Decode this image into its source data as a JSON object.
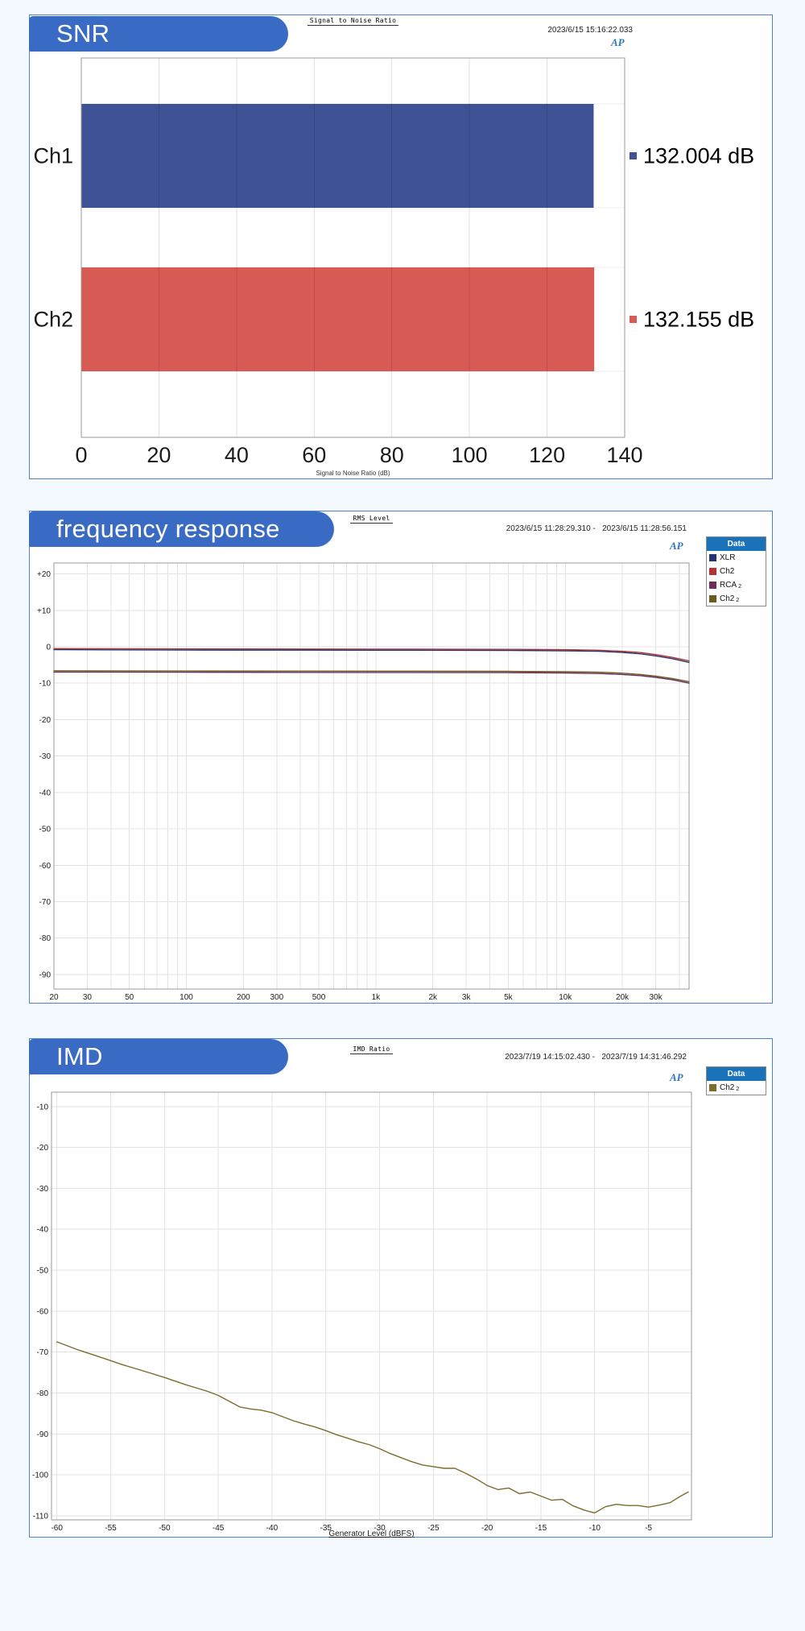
{
  "colors": {
    "banner_bg": "#3a6bc4",
    "panel_border": "#4d82cc",
    "page_bg": "#f4f9ff",
    "legend_header_bg": "#1a73b8"
  },
  "panels": [
    {
      "banner": "SNR",
      "title": "Signal to Noise Ratio",
      "timestamp": "2023/6/15 15:16:22.033",
      "logo": "AP"
    },
    {
      "banner": "frequency response",
      "title": "RMS Level",
      "timestamp": "2023/6/15 11:28:29.310 -   2023/6/15 11:28:56.151",
      "logo": "AP",
      "legend": {
        "header": "Data",
        "items": [
          {
            "label": "XLR",
            "sub": "",
            "color": "#22356e"
          },
          {
            "label": "Ch2",
            "sub": "",
            "color": "#b13434"
          },
          {
            "label": "RCA",
            "sub": "2",
            "color": "#6d2d5d"
          },
          {
            "label": "Ch2",
            "sub": "2",
            "color": "#6b5c1e"
          }
        ]
      }
    },
    {
      "banner": "IMD",
      "title": "IMD Ratio",
      "timestamp": "2023/7/19 14:15:02.430 -   2023/7/19 14:31:46.292",
      "logo": "AP",
      "legend": {
        "header": "Data",
        "items": [
          {
            "label": "Ch2",
            "sub": "2",
            "color": "#7d6c2a"
          }
        ]
      }
    }
  ],
  "chart_data": [
    {
      "type": "bar",
      "orientation": "horizontal",
      "title": "Signal to Noise Ratio",
      "categories": [
        "Ch1",
        "Ch2"
      ],
      "values": [
        132.004,
        132.155
      ],
      "value_labels": [
        "132.004 dB",
        "132.155 dB"
      ],
      "bar_colors": [
        "#3e5295",
        "#d85a55"
      ],
      "xlim": [
        0,
        140
      ],
      "xticks": [
        0,
        20,
        40,
        60,
        80,
        100,
        120,
        140
      ],
      "xlabel": "Signal to Noise Ratio (dB)",
      "grid": true
    },
    {
      "type": "line",
      "title": "RMS Level",
      "x_scale": "log",
      "xlim": [
        20,
        45000
      ],
      "xticks": [
        20,
        30,
        50,
        100,
        200,
        300,
        500,
        1000,
        2000,
        3000,
        5000,
        10000,
        20000,
        30000
      ],
      "xtick_labels": [
        "20",
        "30",
        "50",
        "100",
        "200",
        "300",
        "500",
        "1k",
        "2k",
        "3k",
        "5k",
        "10k",
        "20k",
        "30k"
      ],
      "ylim": [
        -94,
        23
      ],
      "yticks": [
        20,
        10,
        0,
        -10,
        -20,
        -30,
        -40,
        -50,
        -60,
        -70,
        -80,
        -90
      ],
      "ytick_labels": [
        "+20",
        "+10",
        "0",
        "-10",
        "-20",
        "-30",
        "-40",
        "-50",
        "-60",
        "-70",
        "-80",
        "-90"
      ],
      "grid": true,
      "legend_position": "top-right",
      "series": [
        {
          "name": "XLR",
          "color": "#22356e",
          "points": [
            [
              20,
              -0.8
            ],
            [
              100,
              -0.9
            ],
            [
              1000,
              -0.95
            ],
            [
              5000,
              -1.0
            ],
            [
              10000,
              -1.1
            ],
            [
              15000,
              -1.25
            ],
            [
              20000,
              -1.55
            ],
            [
              25000,
              -1.95
            ],
            [
              30000,
              -2.5
            ],
            [
              37000,
              -3.3
            ],
            [
              45000,
              -4.3
            ]
          ]
        },
        {
          "name": "Ch2",
          "color": "#b13434",
          "points": [
            [
              20,
              -0.5
            ],
            [
              100,
              -0.6
            ],
            [
              1000,
              -0.65
            ],
            [
              5000,
              -0.7
            ],
            [
              10000,
              -0.8
            ],
            [
              15000,
              -0.95
            ],
            [
              20000,
              -1.25
            ],
            [
              25000,
              -1.6
            ],
            [
              30000,
              -2.15
            ],
            [
              37000,
              -2.95
            ],
            [
              45000,
              -3.9
            ]
          ]
        },
        {
          "name": "RCA 2",
          "color": "#6d2d5d",
          "points": [
            [
              20,
              -6.95
            ],
            [
              100,
              -7.0
            ],
            [
              1000,
              -7.05
            ],
            [
              5000,
              -7.1
            ],
            [
              10000,
              -7.2
            ],
            [
              15000,
              -7.35
            ],
            [
              20000,
              -7.6
            ],
            [
              25000,
              -7.95
            ],
            [
              30000,
              -8.4
            ],
            [
              37000,
              -9.1
            ],
            [
              45000,
              -10.0
            ]
          ]
        },
        {
          "name": "Ch2 2",
          "color": "#6b5c1e",
          "points": [
            [
              20,
              -6.6
            ],
            [
              100,
              -6.65
            ],
            [
              1000,
              -6.7
            ],
            [
              5000,
              -6.75
            ],
            [
              10000,
              -6.85
            ],
            [
              15000,
              -7.0
            ],
            [
              20000,
              -7.25
            ],
            [
              25000,
              -7.6
            ],
            [
              30000,
              -8.05
            ],
            [
              37000,
              -8.75
            ],
            [
              45000,
              -9.6
            ]
          ]
        }
      ]
    },
    {
      "type": "line",
      "title": "IMD Ratio",
      "x_scale": "linear",
      "xlim": [
        -60.5,
        -1
      ],
      "xticks": [
        -60,
        -55,
        -50,
        -45,
        -40,
        -35,
        -30,
        -25,
        -20,
        -15,
        -10,
        -5
      ],
      "ylim": [
        -111,
        -6.5
      ],
      "yticks": [
        -10,
        -20,
        -30,
        -40,
        -50,
        -60,
        -70,
        -80,
        -90,
        -100,
        -110
      ],
      "xlabel": "Generator Level (dBFS)",
      "grid": true,
      "legend_position": "top-right",
      "series": [
        {
          "name": "Ch2 2",
          "color": "#7d6c2a",
          "points": [
            [
              -60,
              -67.5
            ],
            [
              -58,
              -69.5
            ],
            [
              -56,
              -71.2
            ],
            [
              -54,
              -73
            ],
            [
              -52,
              -74.6
            ],
            [
              -50,
              -76.2
            ],
            [
              -48,
              -78
            ],
            [
              -46,
              -79.6
            ],
            [
              -45,
              -80.6
            ],
            [
              -44,
              -82
            ],
            [
              -43,
              -83.4
            ],
            [
              -42,
              -83.9
            ],
            [
              -41,
              -84.2
            ],
            [
              -40,
              -84.8
            ],
            [
              -39,
              -85.8
            ],
            [
              -38,
              -86.8
            ],
            [
              -37,
              -87.6
            ],
            [
              -36,
              -88.3
            ],
            [
              -35,
              -89.2
            ],
            [
              -34,
              -90.2
            ],
            [
              -33,
              -91
            ],
            [
              -32,
              -91.9
            ],
            [
              -31,
              -92.6
            ],
            [
              -30,
              -93.6
            ],
            [
              -29,
              -94.8
            ],
            [
              -28,
              -95.8
            ],
            [
              -27,
              -96.8
            ],
            [
              -26,
              -97.6
            ],
            [
              -25,
              -98
            ],
            [
              -24,
              -98.4
            ],
            [
              -23,
              -98.4
            ],
            [
              -22,
              -99.6
            ],
            [
              -21,
              -101
            ],
            [
              -20,
              -102.6
            ],
            [
              -19,
              -103.6
            ],
            [
              -18,
              -103.2
            ],
            [
              -17,
              -104.6
            ],
            [
              -16,
              -104.2
            ],
            [
              -15,
              -105.2
            ],
            [
              -14,
              -106.2
            ],
            [
              -13,
              -106
            ],
            [
              -12,
              -107.6
            ],
            [
              -11,
              -108.6
            ],
            [
              -10,
              -109.3
            ],
            [
              -9,
              -107.8
            ],
            [
              -8,
              -107.2
            ],
            [
              -7,
              -107.5
            ],
            [
              -6,
              -107.5
            ],
            [
              -5,
              -107.9
            ],
            [
              -4,
              -107.4
            ],
            [
              -3,
              -106.8
            ],
            [
              -2,
              -105.2
            ],
            [
              -1.3,
              -104.2
            ]
          ]
        }
      ]
    }
  ]
}
